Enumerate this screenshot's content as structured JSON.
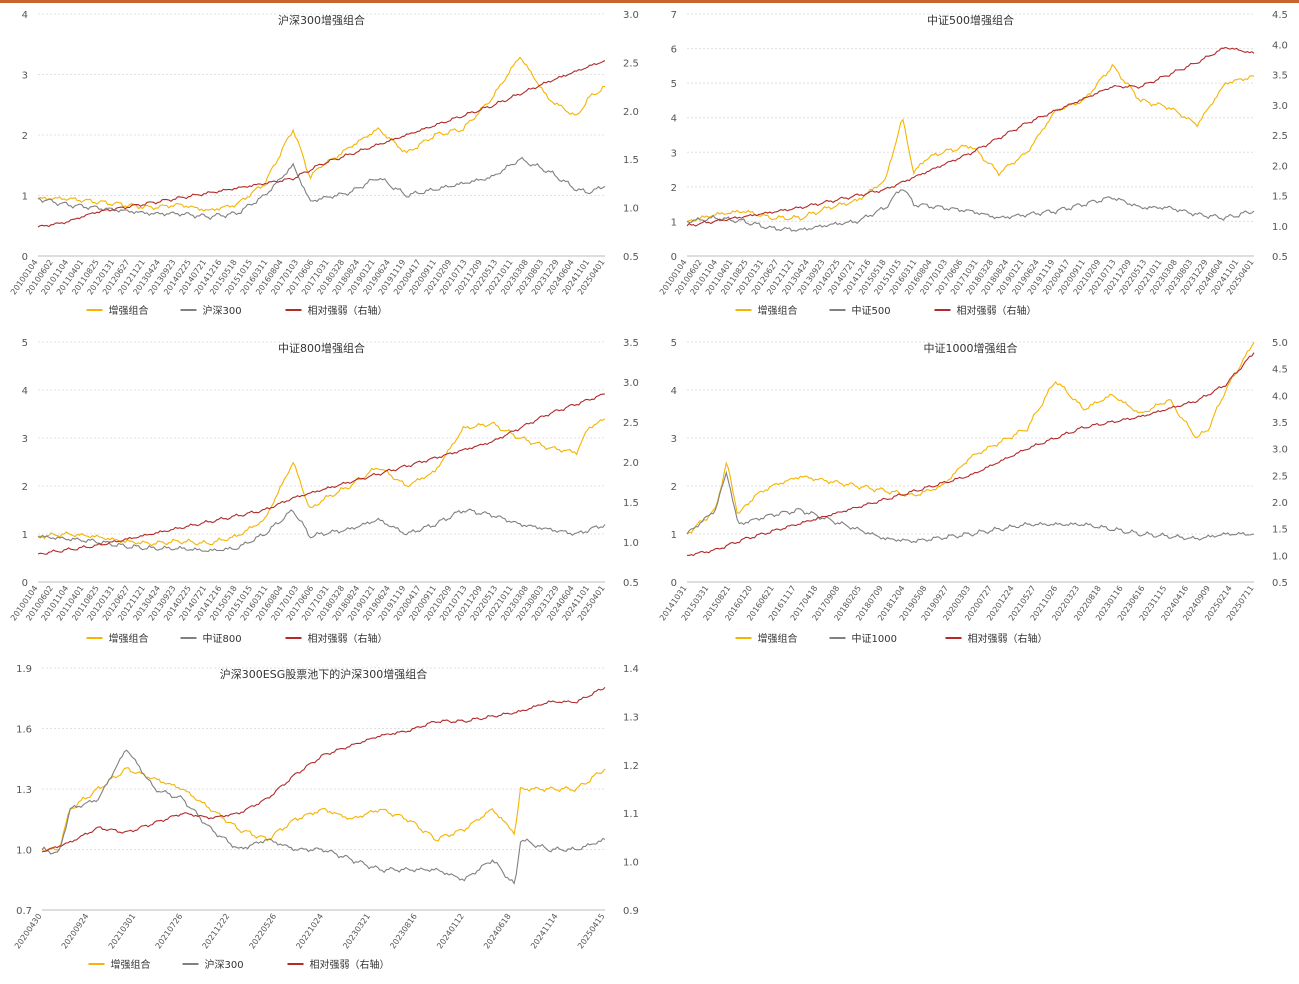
{
  "colors": {
    "enhanced": "#f5b400",
    "index": "#808080",
    "relative": "#b22a2a",
    "grid": "#e0e0e0",
    "topline": "#c8642d"
  },
  "chart_data": [
    {
      "type": "line",
      "title": "沪深300增强组合",
      "ylim": [
        0,
        4
      ],
      "yticks": [
        "0",
        "1",
        "2",
        "3",
        "4"
      ],
      "y2lim": [
        0.5,
        3.0
      ],
      "y2ticks": [
        "0.5",
        "1.0",
        "1.5",
        "2.0",
        "2.5",
        "3.0"
      ],
      "xticks": [
        "20100104",
        "20100602",
        "20101104",
        "20110401",
        "20110825",
        "20120131",
        "20120627",
        "20121121",
        "20130424",
        "20130923",
        "20140225",
        "20140721",
        "20141216",
        "20150518",
        "20151015",
        "20160311",
        "20160804",
        "20170103",
        "20170606",
        "20171031",
        "20180328",
        "20180824",
        "20190121",
        "20190624",
        "20191119",
        "20200417",
        "20200911",
        "20210209",
        "20210713",
        "20211209",
        "20220513",
        "20221011",
        "20230308",
        "20230803",
        "20231229",
        "20240604",
        "20241101",
        "20250401"
      ],
      "legend": [
        "增强组合",
        "沪深300",
        "相对强弱（右轴）"
      ],
      "series": [
        {
          "name": "增强组合",
          "axis": "left",
          "x": [
            0,
            0.05,
            0.1,
            0.15,
            0.2,
            0.25,
            0.3,
            0.35,
            0.4,
            0.45,
            0.48,
            0.5,
            0.52,
            0.55,
            0.6,
            0.65,
            0.7,
            0.75,
            0.8,
            0.85,
            0.9,
            0.95,
            0.97,
            1.0
          ],
          "values": [
            0.95,
            0.95,
            0.9,
            0.85,
            0.8,
            0.85,
            0.75,
            0.85,
            1.2,
            2.1,
            1.3,
            1.5,
            1.6,
            1.8,
            2.1,
            1.7,
            2.0,
            2.1,
            2.6,
            3.3,
            2.6,
            2.3,
            2.6,
            2.8
          ]
        },
        {
          "name": "沪深300",
          "axis": "left",
          "x": [
            0,
            0.05,
            0.1,
            0.15,
            0.2,
            0.25,
            0.3,
            0.35,
            0.4,
            0.45,
            0.48,
            0.5,
            0.55,
            0.6,
            0.65,
            0.7,
            0.75,
            0.8,
            0.85,
            0.9,
            0.95,
            0.97,
            1.0
          ],
          "values": [
            0.95,
            0.85,
            0.8,
            0.75,
            0.7,
            0.7,
            0.65,
            0.7,
            1.0,
            1.5,
            0.9,
            0.95,
            1.05,
            1.3,
            1.0,
            1.1,
            1.2,
            1.3,
            1.6,
            1.4,
            1.1,
            1.05,
            1.15
          ]
        },
        {
          "name": "相对强弱（右轴）",
          "axis": "right",
          "x": [
            0,
            0.05,
            0.1,
            0.2,
            0.3,
            0.4,
            0.45,
            0.5,
            0.6,
            0.7,
            0.8,
            0.9,
            1.0
          ],
          "values": [
            0.8,
            0.85,
            0.95,
            1.05,
            1.15,
            1.25,
            1.3,
            1.45,
            1.65,
            1.85,
            2.05,
            2.3,
            2.52
          ]
        }
      ]
    },
    {
      "type": "line",
      "title": "中证500增强组合",
      "ylim": [
        0,
        7
      ],
      "yticks": [
        "0",
        "1",
        "2",
        "3",
        "4",
        "5",
        "6",
        "7"
      ],
      "y2lim": [
        0.5,
        4.5
      ],
      "y2ticks": [
        "0.5",
        "1.0",
        "1.5",
        "2.0",
        "2.5",
        "3.0",
        "3.5",
        "4.0",
        "4.5"
      ],
      "xticks": [
        "20100104",
        "20100602",
        "20101104",
        "20110401",
        "20110825",
        "20120131",
        "20120627",
        "20121121",
        "20130424",
        "20130923",
        "20140225",
        "20140721",
        "20141216",
        "20150518",
        "20151015",
        "20160311",
        "20160804",
        "20170103",
        "20170606",
        "20171031",
        "20180328",
        "20180824",
        "20190121",
        "20190624",
        "20191119",
        "20200417",
        "20200911",
        "20210209",
        "20210713",
        "20211209",
        "20220513",
        "20221011",
        "20230308",
        "20230803",
        "20231229",
        "20240604",
        "20241101",
        "20250401"
      ],
      "legend": [
        "增强组合",
        "中证500",
        "相对强弱（右轴）"
      ],
      "series": [
        {
          "name": "增强组合",
          "axis": "left",
          "x": [
            0,
            0.05,
            0.1,
            0.15,
            0.2,
            0.25,
            0.3,
            0.35,
            0.38,
            0.4,
            0.42,
            0.45,
            0.5,
            0.55,
            0.6,
            0.65,
            0.7,
            0.75,
            0.8,
            0.85,
            0.9,
            0.95,
            1.0
          ],
          "values": [
            1.0,
            1.2,
            1.3,
            1.1,
            1.1,
            1.4,
            1.6,
            2.2,
            4.0,
            2.4,
            2.8,
            3.0,
            3.2,
            2.4,
            3.0,
            4.2,
            4.5,
            5.5,
            4.5,
            4.3,
            3.8,
            5.0,
            5.2
          ]
        },
        {
          "name": "中证500",
          "axis": "left",
          "x": [
            0,
            0.05,
            0.1,
            0.15,
            0.2,
            0.25,
            0.3,
            0.35,
            0.38,
            0.4,
            0.45,
            0.5,
            0.55,
            0.6,
            0.65,
            0.7,
            0.75,
            0.8,
            0.85,
            0.9,
            0.95,
            1.0
          ],
          "values": [
            1.0,
            1.1,
            1.0,
            0.8,
            0.75,
            0.9,
            1.0,
            1.4,
            2.0,
            1.5,
            1.4,
            1.3,
            1.1,
            1.2,
            1.3,
            1.5,
            1.7,
            1.4,
            1.4,
            1.2,
            1.1,
            1.3
          ]
        },
        {
          "name": "相对强弱（右轴）",
          "axis": "right",
          "x": [
            0,
            0.1,
            0.2,
            0.3,
            0.35,
            0.4,
            0.5,
            0.6,
            0.7,
            0.75,
            0.8,
            0.85,
            0.9,
            0.95,
            1.0
          ],
          "values": [
            1.0,
            1.15,
            1.3,
            1.5,
            1.6,
            1.8,
            2.2,
            2.7,
            3.1,
            3.3,
            3.3,
            3.5,
            3.7,
            3.95,
            3.85
          ]
        }
      ]
    },
    {
      "type": "line",
      "title": "中证800增强组合",
      "ylim": [
        0,
        5
      ],
      "yticks": [
        "0",
        "1",
        "2",
        "3",
        "4",
        "5"
      ],
      "y2lim": [
        0.5,
        3.5
      ],
      "y2ticks": [
        "0.5",
        "1.0",
        "1.5",
        "2.0",
        "2.5",
        "3.0",
        "3.5"
      ],
      "xticks": [
        "20100104",
        "20100602",
        "20101104",
        "20110401",
        "20110825",
        "20120131",
        "20120627",
        "20121121",
        "20130424",
        "20130923",
        "20140225",
        "20140721",
        "20141216",
        "20150518",
        "20151015",
        "20160311",
        "20160804",
        "20170103",
        "20170606",
        "20171031",
        "20180328",
        "20180824",
        "20190121",
        "20190624",
        "20191119",
        "20200417",
        "20200911",
        "20210209",
        "20210713",
        "20211209",
        "20220513",
        "20221011",
        "20230308",
        "20230803",
        "20231229",
        "20240604",
        "20241101",
        "20250401"
      ],
      "legend": [
        "增强组合",
        "中证800",
        "相对强弱（右轴）"
      ],
      "series": [
        {
          "name": "增强组合",
          "axis": "left",
          "x": [
            0,
            0.05,
            0.1,
            0.15,
            0.2,
            0.25,
            0.3,
            0.35,
            0.4,
            0.45,
            0.48,
            0.5,
            0.55,
            0.6,
            0.65,
            0.7,
            0.75,
            0.8,
            0.85,
            0.9,
            0.95,
            0.97,
            1.0
          ],
          "values": [
            0.95,
            1.0,
            0.95,
            0.85,
            0.8,
            0.85,
            0.8,
            0.95,
            1.3,
            2.5,
            1.5,
            1.7,
            2.0,
            2.4,
            2.0,
            2.3,
            3.2,
            3.3,
            3.0,
            2.8,
            2.7,
            3.2,
            3.4
          ]
        },
        {
          "name": "中证800",
          "axis": "left",
          "x": [
            0,
            0.05,
            0.1,
            0.15,
            0.2,
            0.25,
            0.3,
            0.35,
            0.4,
            0.45,
            0.48,
            0.5,
            0.55,
            0.6,
            0.65,
            0.7,
            0.75,
            0.8,
            0.85,
            0.9,
            0.95,
            1.0
          ],
          "values": [
            0.95,
            0.9,
            0.85,
            0.75,
            0.7,
            0.7,
            0.65,
            0.7,
            1.0,
            1.5,
            0.95,
            1.0,
            1.1,
            1.3,
            1.0,
            1.2,
            1.5,
            1.4,
            1.2,
            1.1,
            1.0,
            1.2
          ]
        },
        {
          "name": "相对强弱（右轴）",
          "axis": "right",
          "x": [
            0,
            0.1,
            0.2,
            0.3,
            0.4,
            0.45,
            0.5,
            0.6,
            0.7,
            0.75,
            0.8,
            0.9,
            1.0
          ],
          "values": [
            0.85,
            0.95,
            1.1,
            1.25,
            1.4,
            1.55,
            1.65,
            1.85,
            2.05,
            2.15,
            2.25,
            2.6,
            2.85
          ]
        }
      ]
    },
    {
      "type": "line",
      "title": "中证1000增强组合",
      "ylim": [
        0,
        5
      ],
      "yticks": [
        "0",
        "1",
        "2",
        "3",
        "4",
        "5"
      ],
      "y2lim": [
        0.5,
        5.0
      ],
      "y2ticks": [
        "0.5",
        "1.0",
        "1.5",
        "2.0",
        "2.5",
        "3.0",
        "3.5",
        "4.0",
        "4.5",
        "5.0"
      ],
      "xticks": [
        "20141031",
        "20150331",
        "20150821",
        "20160120",
        "20160621",
        "20161117",
        "20170418",
        "20170908",
        "20180205",
        "20180709",
        "20181204",
        "20190508",
        "20190927",
        "20200303",
        "20200727",
        "20201224",
        "20210527",
        "20211026",
        "20220323",
        "20220818",
        "20230116",
        "20230616",
        "20231115",
        "20240416",
        "20240909",
        "20250214",
        "20250711"
      ],
      "legend": [
        "增强组合",
        "中证1000",
        "相对强弱（右轴）"
      ],
      "series": [
        {
          "name": "增强组合",
          "axis": "left",
          "x": [
            0,
            0.05,
            0.07,
            0.09,
            0.12,
            0.15,
            0.2,
            0.3,
            0.4,
            0.45,
            0.5,
            0.6,
            0.65,
            0.7,
            0.75,
            0.8,
            0.85,
            0.88,
            0.9,
            0.92,
            0.95,
            1.0
          ],
          "values": [
            1.0,
            1.5,
            2.5,
            1.4,
            1.8,
            2.0,
            2.2,
            2.0,
            1.8,
            2.0,
            2.6,
            3.2,
            4.2,
            3.6,
            3.9,
            3.5,
            3.8,
            3.3,
            3.0,
            3.2,
            4.0,
            5.0
          ]
        },
        {
          "name": "中证1000",
          "axis": "left",
          "x": [
            0,
            0.05,
            0.07,
            0.09,
            0.12,
            0.15,
            0.2,
            0.3,
            0.35,
            0.4,
            0.5,
            0.6,
            0.7,
            0.8,
            0.9,
            0.95,
            1.0
          ],
          "values": [
            1.0,
            1.5,
            2.3,
            1.2,
            1.3,
            1.4,
            1.5,
            1.1,
            0.9,
            0.85,
            1.0,
            1.2,
            1.2,
            1.0,
            0.9,
            1.0,
            1.0
          ]
        },
        {
          "name": "相对强弱（右轴）",
          "axis": "right",
          "x": [
            0,
            0.05,
            0.1,
            0.2,
            0.3,
            0.4,
            0.5,
            0.6,
            0.7,
            0.8,
            0.9,
            0.95,
            1.0
          ],
          "values": [
            1.0,
            1.1,
            1.3,
            1.6,
            1.9,
            2.2,
            2.5,
            3.0,
            3.4,
            3.6,
            3.9,
            4.2,
            4.8
          ]
        }
      ]
    },
    {
      "type": "line",
      "title": "沪深300ESG股票池下的沪深300增强组合",
      "ylim": [
        0.7,
        1.9
      ],
      "yticks": [
        "0.7",
        "1.0",
        "1.3",
        "1.6",
        "1.9"
      ],
      "y2lim": [
        0.9,
        1.4
      ],
      "y2ticks": [
        "0.9",
        "1.0",
        "1.1",
        "1.2",
        "1.3",
        "1.4"
      ],
      "xticks": [
        "20200430",
        "20200924",
        "20210301",
        "20210726",
        "20211222",
        "20220526",
        "20221024",
        "20230321",
        "20230816",
        "20240112",
        "20240618",
        "20241114",
        "20250415"
      ],
      "legend": [
        "增强组合",
        "沪深300",
        "相对强弱（右轴）"
      ],
      "series": [
        {
          "name": "增强组合",
          "axis": "left",
          "x": [
            0,
            0.03,
            0.05,
            0.1,
            0.15,
            0.2,
            0.25,
            0.3,
            0.35,
            0.4,
            0.45,
            0.5,
            0.55,
            0.6,
            0.65,
            0.7,
            0.75,
            0.8,
            0.84,
            0.85,
            0.9,
            0.95,
            1.0
          ],
          "values": [
            1.0,
            1.0,
            1.2,
            1.3,
            1.4,
            1.35,
            1.3,
            1.2,
            1.1,
            1.05,
            1.15,
            1.2,
            1.15,
            1.2,
            1.15,
            1.05,
            1.1,
            1.2,
            1.08,
            1.3,
            1.3,
            1.3,
            1.4
          ]
        },
        {
          "name": "沪深300",
          "axis": "left",
          "x": [
            0,
            0.03,
            0.05,
            0.1,
            0.15,
            0.2,
            0.25,
            0.3,
            0.35,
            0.4,
            0.45,
            0.5,
            0.55,
            0.6,
            0.65,
            0.7,
            0.75,
            0.8,
            0.84,
            0.85,
            0.9,
            0.95,
            1.0
          ],
          "values": [
            1.0,
            0.98,
            1.2,
            1.25,
            1.5,
            1.3,
            1.25,
            1.1,
            1.0,
            1.05,
            1.0,
            1.0,
            0.95,
            0.9,
            0.9,
            0.9,
            0.85,
            0.95,
            0.82,
            1.05,
            1.0,
            1.0,
            1.05
          ]
        },
        {
          "name": "相对强弱（右轴）",
          "axis": "right",
          "x": [
            0,
            0.05,
            0.1,
            0.15,
            0.2,
            0.25,
            0.3,
            0.35,
            0.4,
            0.45,
            0.5,
            0.55,
            0.6,
            0.65,
            0.7,
            0.75,
            0.8,
            0.85,
            0.9,
            0.95,
            1.0
          ],
          "values": [
            1.02,
            1.04,
            1.07,
            1.06,
            1.08,
            1.1,
            1.09,
            1.1,
            1.13,
            1.18,
            1.22,
            1.24,
            1.26,
            1.27,
            1.29,
            1.29,
            1.3,
            1.31,
            1.33,
            1.33,
            1.36
          ]
        }
      ]
    }
  ]
}
